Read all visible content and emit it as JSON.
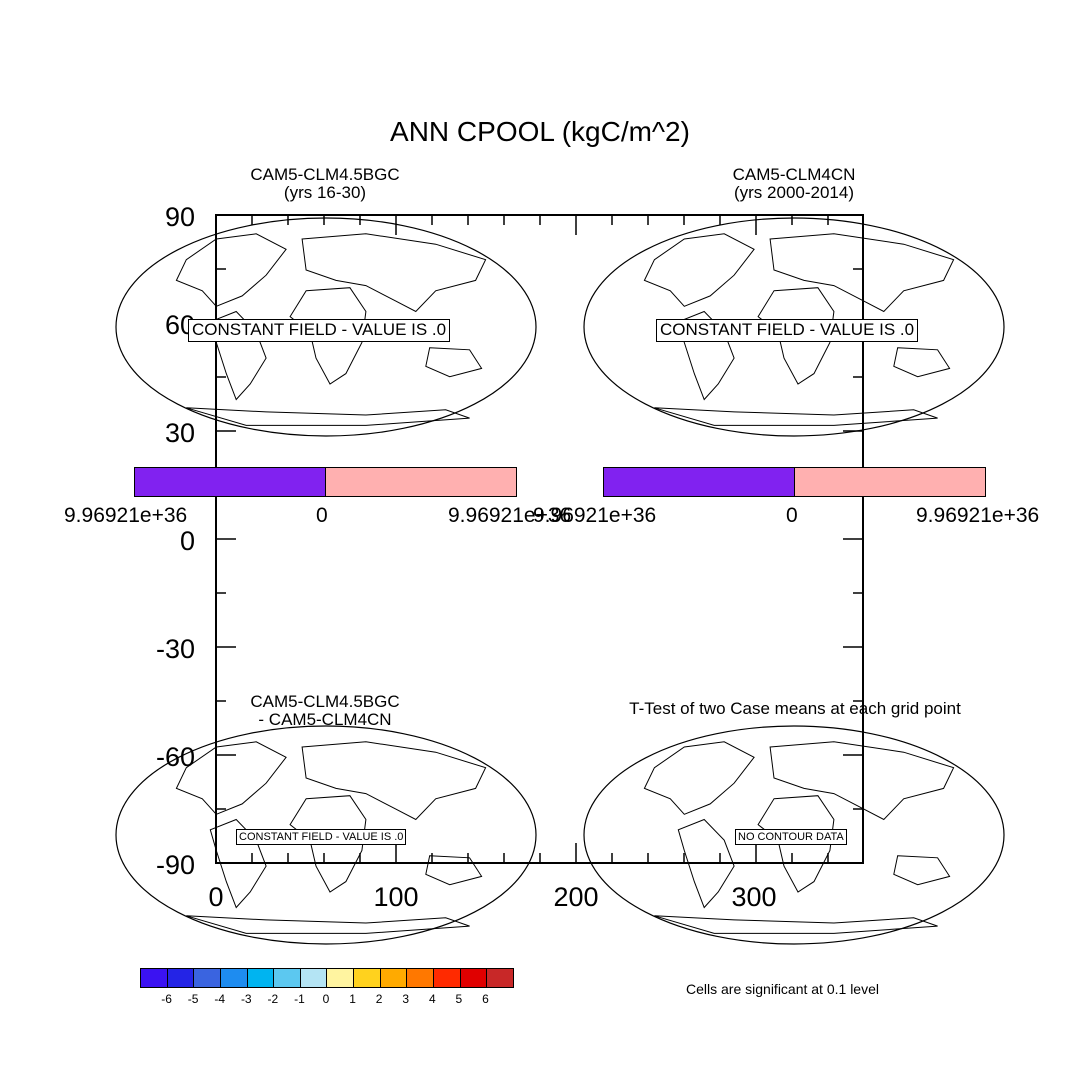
{
  "title": "ANN CPOOL (kgC/m^2)",
  "panels": {
    "top_left": {
      "line1": "CAM5-CLM4.5BGC",
      "line2": "(yrs 16-30)",
      "message": "CONSTANT FIELD - VALUE IS .0",
      "colorbar": {
        "labels": [
          "9.96921e+36",
          "0",
          "9.96921e+36"
        ],
        "colors": [
          "#8122f0",
          "#ffb0b0"
        ]
      }
    },
    "top_right": {
      "line1": "CAM5-CLM4CN",
      "line2": "(yrs 2000-2014)",
      "message": "CONSTANT FIELD - VALUE IS .0",
      "colorbar": {
        "labels": [
          "9.96921e+36",
          "0",
          "9.96921e+36"
        ],
        "colors": [
          "#8122f0",
          "#ffb0b0"
        ]
      }
    },
    "bottom_left": {
      "line1": "CAM5-CLM4.5BGC",
      "line2": "- CAM5-CLM4CN",
      "message": "CONSTANT FIELD - VALUE IS .0"
    },
    "bottom_right": {
      "title": "T-Test of two Case means at each grid point",
      "message": "NO CONTOUR DATA"
    }
  },
  "axes": {
    "y_ticks": [
      "90",
      "60",
      "30",
      "0",
      "-30",
      "-60",
      "-90"
    ],
    "x_ticks": [
      "0",
      "100",
      "200",
      "300"
    ]
  },
  "legend": {
    "labels": [
      "-6",
      "-5",
      "-4",
      "-3",
      "-2",
      "-1",
      "0",
      "1",
      "2",
      "3",
      "4",
      "5",
      "6"
    ],
    "colors": [
      "#3b12f2",
      "#2424e6",
      "#3a64e0",
      "#1e8cf0",
      "#00b4f0",
      "#5cc8f0",
      "#b4e4f4",
      "#fff4a0",
      "#ffd21e",
      "#ffaa00",
      "#ff7800",
      "#ff2a00",
      "#e00000",
      "#c82828"
    ]
  },
  "significance_note": "Cells are significant at 0.1 level"
}
